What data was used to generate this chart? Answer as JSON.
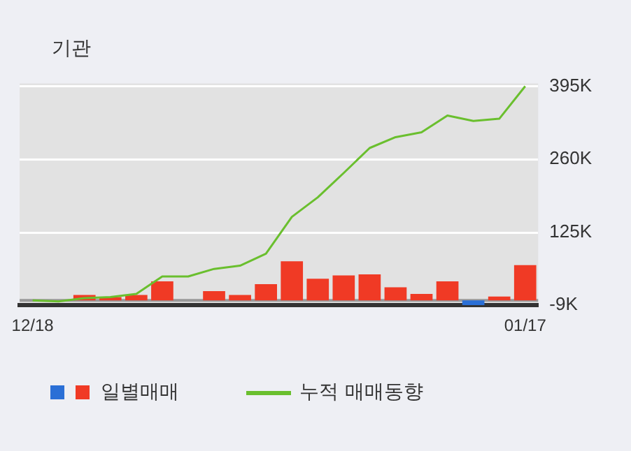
{
  "chart_data": {
    "type": "bar",
    "title": "기관",
    "categories": [
      "12/18",
      null,
      null,
      null,
      null,
      null,
      null,
      null,
      null,
      null,
      null,
      null,
      null,
      null,
      null,
      null,
      null,
      null,
      null,
      "01/17"
    ],
    "series": [
      {
        "name": "일별매매",
        "colors": [
          "#f03a25",
          "#2a6fd6",
          "#f03a25",
          "#f03a25",
          "#f03a25",
          "#f03a25",
          "#f03a25",
          "#f03a25",
          "#f03a25",
          "#f03a25",
          "#f03a25",
          "#f03a25",
          "#f03a25",
          "#f03a25",
          "#f03a25",
          "#f03a25",
          "#f03a25",
          "#2a6fd6",
          "#f03a25",
          "#f03a25"
        ],
        "values": [
          0,
          null,
          10000,
          6000,
          10000,
          35000,
          0,
          17000,
          10000,
          30000,
          72000,
          40000,
          46000,
          48000,
          24000,
          12000,
          35000,
          -9000,
          7000,
          65000
        ]
      },
      {
        "name": "누적 매매동향",
        "type": "line",
        "color": "#6abf2e",
        "values": [
          0,
          -2000,
          4000,
          6000,
          12000,
          44000,
          44000,
          58000,
          64000,
          86000,
          154000,
          190000,
          235000,
          281000,
          301000,
          310000,
          341000,
          331000,
          335000,
          395000
        ]
      }
    ],
    "ylim": [
      -9000,
      400000
    ],
    "yticks": [
      {
        "value": -9000,
        "label": "-9K"
      },
      {
        "value": 125000,
        "label": "125K"
      },
      {
        "value": 260000,
        "label": "260K"
      },
      {
        "value": 395000,
        "label": "395K"
      }
    ],
    "grid": "y",
    "legend": "bottom"
  }
}
